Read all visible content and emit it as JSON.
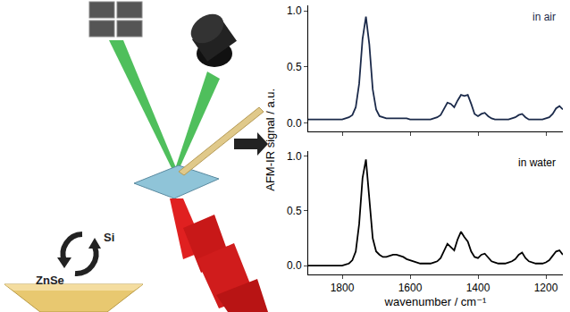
{
  "chart_data": [
    {
      "type": "line",
      "annotation": "in air",
      "ylabel": "AFM-IR signal / a.u.",
      "tick_labels": "y",
      "xlim": [
        1900,
        1150
      ],
      "xticks": [
        1800,
        1600,
        1400,
        1200
      ],
      "ylim": [
        -0.08,
        1.05
      ],
      "yticks": [
        {
          "value": 0,
          "label": "0.0"
        },
        {
          "value": 0.5,
          "label": "0.5"
        },
        {
          "value": 1,
          "label": "1.0"
        }
      ],
      "grid": false,
      "series": [
        {
          "name": "in air",
          "color": "#1b2a4a",
          "x": [
            1900,
            1890,
            1880,
            1870,
            1860,
            1850,
            1840,
            1830,
            1820,
            1810,
            1800,
            1790,
            1780,
            1770,
            1760,
            1750,
            1740,
            1730,
            1720,
            1710,
            1700,
            1690,
            1680,
            1670,
            1660,
            1650,
            1640,
            1630,
            1620,
            1610,
            1600,
            1590,
            1580,
            1570,
            1560,
            1550,
            1540,
            1530,
            1520,
            1510,
            1500,
            1490,
            1480,
            1470,
            1460,
            1450,
            1440,
            1430,
            1420,
            1410,
            1400,
            1390,
            1380,
            1370,
            1360,
            1350,
            1340,
            1330,
            1320,
            1310,
            1300,
            1290,
            1280,
            1270,
            1260,
            1250,
            1240,
            1230,
            1220,
            1210,
            1200,
            1190,
            1180,
            1170,
            1160,
            1150
          ],
          "values": [
            0.03,
            0.03,
            0.03,
            0.03,
            0.03,
            0.03,
            0.03,
            0.03,
            0.03,
            0.03,
            0.03,
            0.04,
            0.05,
            0.07,
            0.14,
            0.35,
            0.75,
            0.95,
            0.7,
            0.3,
            0.12,
            0.06,
            0.05,
            0.04,
            0.04,
            0.04,
            0.04,
            0.04,
            0.04,
            0.04,
            0.03,
            0.03,
            0.03,
            0.03,
            0.03,
            0.03,
            0.03,
            0.04,
            0.05,
            0.07,
            0.12,
            0.18,
            0.17,
            0.14,
            0.2,
            0.25,
            0.24,
            0.25,
            0.17,
            0.08,
            0.06,
            0.08,
            0.09,
            0.06,
            0.04,
            0.03,
            0.03,
            0.03,
            0.03,
            0.03,
            0.04,
            0.05,
            0.07,
            0.08,
            0.05,
            0.03,
            0.03,
            0.03,
            0.03,
            0.03,
            0.04,
            0.05,
            0.08,
            0.13,
            0.15,
            0.12
          ]
        }
      ]
    },
    {
      "type": "line",
      "annotation": "in water",
      "xlabel": "wavenumber / cm⁻¹",
      "xlim": [
        1900,
        1150
      ],
      "xticks": [
        1800,
        1600,
        1400,
        1200
      ],
      "ylim": [
        -0.08,
        1.05
      ],
      "yticks": [
        {
          "value": 0,
          "label": "0.0"
        },
        {
          "value": 0.5,
          "label": "0.5"
        },
        {
          "value": 1,
          "label": "1.0"
        }
      ],
      "grid": false,
      "series": [
        {
          "name": "in water",
          "color": "#000000",
          "x": [
            1900,
            1890,
            1880,
            1870,
            1860,
            1850,
            1840,
            1830,
            1820,
            1810,
            1800,
            1790,
            1780,
            1770,
            1760,
            1750,
            1740,
            1730,
            1720,
            1710,
            1700,
            1690,
            1680,
            1670,
            1660,
            1650,
            1640,
            1630,
            1620,
            1610,
            1600,
            1590,
            1580,
            1570,
            1560,
            1550,
            1540,
            1530,
            1520,
            1510,
            1500,
            1490,
            1480,
            1470,
            1460,
            1450,
            1440,
            1430,
            1420,
            1410,
            1400,
            1390,
            1380,
            1370,
            1360,
            1350,
            1340,
            1330,
            1320,
            1310,
            1300,
            1290,
            1280,
            1270,
            1260,
            1250,
            1240,
            1230,
            1220,
            1210,
            1200,
            1190,
            1180,
            1170,
            1160,
            1150
          ],
          "values": [
            0.0,
            0.0,
            0.0,
            0.0,
            0.0,
            0.0,
            0.0,
            0.0,
            0.0,
            0.0,
            0.0,
            0.01,
            0.02,
            0.05,
            0.13,
            0.38,
            0.8,
            0.97,
            0.62,
            0.25,
            0.13,
            0.1,
            0.08,
            0.08,
            0.09,
            0.1,
            0.1,
            0.09,
            0.08,
            0.06,
            0.05,
            0.04,
            0.03,
            0.02,
            0.02,
            0.02,
            0.02,
            0.03,
            0.04,
            0.07,
            0.14,
            0.2,
            0.17,
            0.14,
            0.24,
            0.31,
            0.26,
            0.22,
            0.13,
            0.08,
            0.07,
            0.1,
            0.11,
            0.07,
            0.04,
            0.03,
            0.02,
            0.02,
            0.02,
            0.03,
            0.04,
            0.06,
            0.1,
            0.12,
            0.07,
            0.04,
            0.03,
            0.02,
            0.02,
            0.02,
            0.03,
            0.05,
            0.09,
            0.13,
            0.14,
            0.1
          ]
        }
      ]
    }
  ],
  "diagram": {
    "labels": [
      "Si",
      "ZnSe"
    ]
  }
}
